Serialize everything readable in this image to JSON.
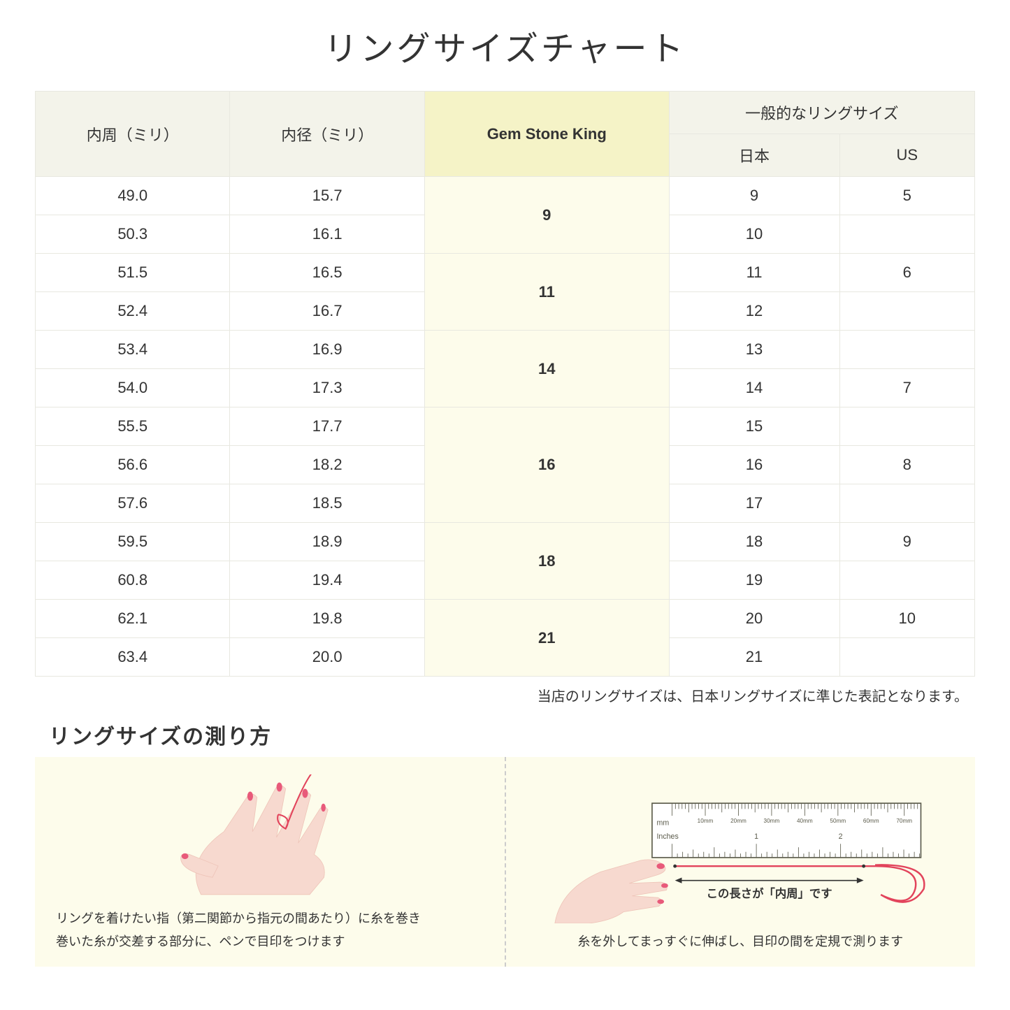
{
  "title": "リングサイズチャート",
  "headers": {
    "circ": "内周（ミリ）",
    "diam": "内径（ミリ）",
    "gsk": "Gem Stone King",
    "general": "一般的なリングサイズ",
    "jp": "日本",
    "us": "US"
  },
  "rows": [
    {
      "circ": "49.0",
      "diam": "15.7",
      "gsk": "9",
      "gsk_span": 2,
      "jp": "9",
      "us": "5"
    },
    {
      "circ": "50.3",
      "diam": "16.1",
      "jp": "10",
      "us": ""
    },
    {
      "circ": "51.5",
      "diam": "16.5",
      "gsk": "11",
      "gsk_span": 2,
      "jp": "11",
      "us": "6"
    },
    {
      "circ": "52.4",
      "diam": "16.7",
      "jp": "12",
      "us": ""
    },
    {
      "circ": "53.4",
      "diam": "16.9",
      "gsk": "14",
      "gsk_span": 2,
      "jp": "13",
      "us": ""
    },
    {
      "circ": "54.0",
      "diam": "17.3",
      "jp": "14",
      "us": "7"
    },
    {
      "circ": "55.5",
      "diam": "17.7",
      "gsk": "16",
      "gsk_span": 3,
      "jp": "15",
      "us": ""
    },
    {
      "circ": "56.6",
      "diam": "18.2",
      "jp": "16",
      "us": "8"
    },
    {
      "circ": "57.6",
      "diam": "18.5",
      "jp": "17",
      "us": ""
    },
    {
      "circ": "59.5",
      "diam": "18.9",
      "gsk": "18",
      "gsk_span": 2,
      "jp": "18",
      "us": "9"
    },
    {
      "circ": "60.8",
      "diam": "19.4",
      "jp": "19",
      "us": ""
    },
    {
      "circ": "62.1",
      "diam": "19.8",
      "gsk": "21",
      "gsk_span": 2,
      "jp": "20",
      "us": "10"
    },
    {
      "circ": "63.4",
      "diam": "20.0",
      "jp": "21",
      "us": ""
    }
  ],
  "note": "当店のリングサイズは、日本リングサイズに準じた表記となります。",
  "measure": {
    "title": "リングサイズの測り方",
    "left_caption": "リングを着けたい指（第二関節から指元の間あたり）に糸を巻き\n巻いた糸が交差する部分に、ペンで目印をつけます",
    "right_caption": "糸を外してまっすぐに伸ばし、目印の間を定規で測ります",
    "ruler_label_mm": "mm",
    "ruler_label_in": "Inches",
    "ruler_mm_marks": [
      "10mm",
      "20mm",
      "30mm",
      "40mm",
      "50mm",
      "60mm",
      "70mm"
    ],
    "ruler_in_marks": [
      "1",
      "2"
    ],
    "arrow_label": "この長さが「内周」です"
  },
  "colors": {
    "header_bg": "#f3f3ea",
    "highlight_header": "#f5f3c7",
    "highlight_cell": "#fdfceb",
    "border": "#e8e8e0",
    "thread": "#e2435b",
    "skin": "#f7d9cf",
    "skin_dark": "#eec4b8",
    "nail": "#e85a7a",
    "ruler_line": "#5a5a4a",
    "note_bg": "#fdfceb"
  }
}
